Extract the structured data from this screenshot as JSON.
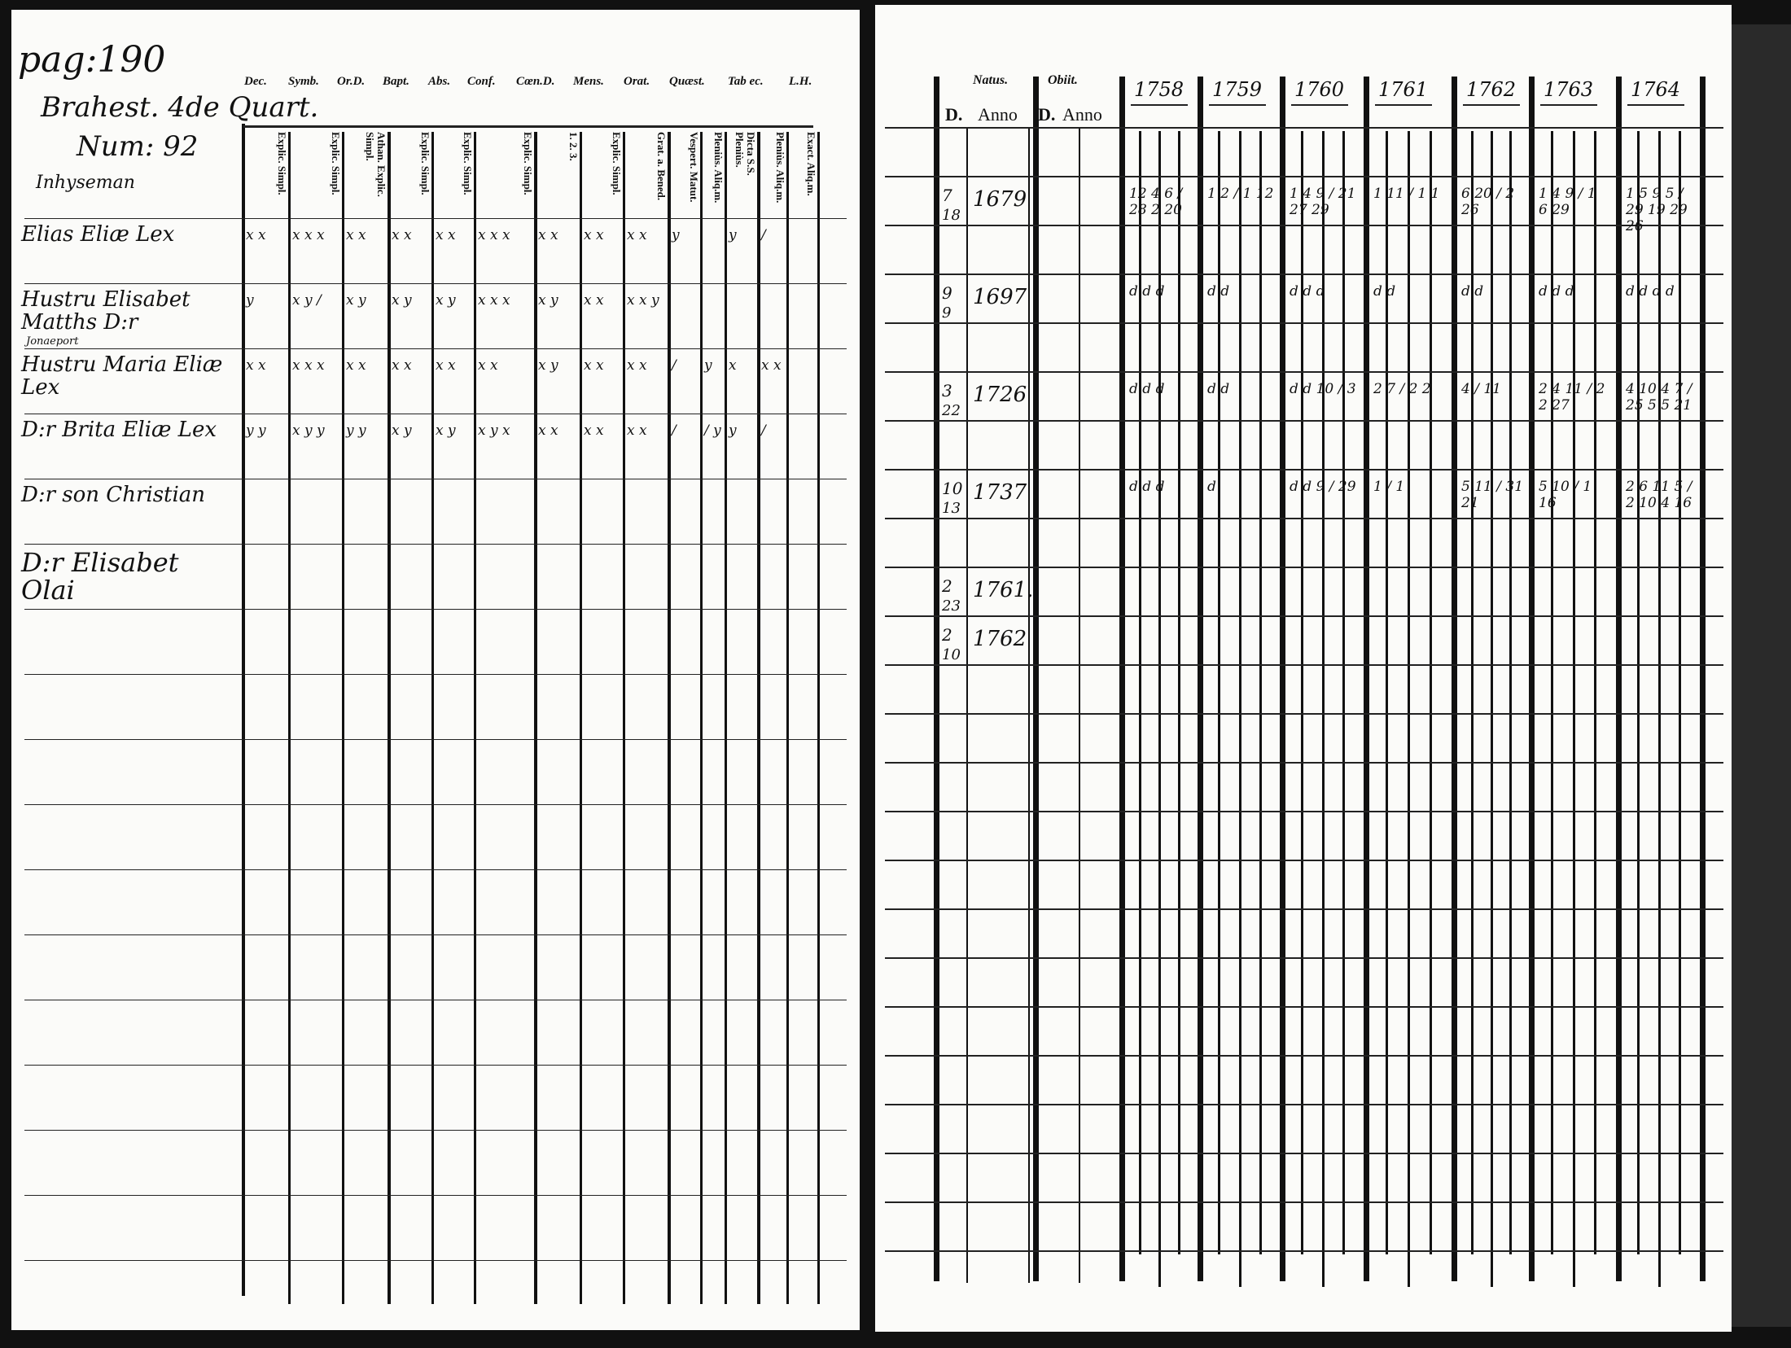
{
  "left_page": {
    "page_label": "pag:190",
    "place": "Brahest. 4de Quart.",
    "number": "Num: 92",
    "occupation": "Inhyseman",
    "top_headers": [
      "Dec.",
      "Symb.",
      "Or.D.",
      "Bapt.",
      "Abs.",
      "Conf.",
      "Cœn.D.",
      "Mens.",
      "Orat.",
      "Quæst.",
      "Tab ec.",
      "L.H."
    ],
    "column_headers": [
      "Explic. Simpl.",
      "Explic. Simpl.",
      "Athan. Explic. Simpl.",
      "Explic. Simpl.",
      "Explic. Simpl.",
      "Explic. Simpl.",
      "1. 2. 3.",
      "Explic. Simpl.",
      "Grat. a. Bened.",
      "Vespert. Matut.",
      "Pleniùs. Aliq.m.",
      "Dicta S.S. Pleniùs.",
      "Pleniùs. Aliq.m.",
      "Exact. Aliq.m."
    ],
    "persons": [
      {
        "name": "Elias Eliæ Lex",
        "marks": [
          "x x",
          "x x x",
          "x x",
          "x x",
          "x x",
          "x x x",
          "x x",
          "x x",
          "x x",
          "y",
          "",
          "y",
          "/"
        ]
      },
      {
        "name": "Hustru Elisabet Matths D:r",
        "note": "Jonaeport",
        "marks": [
          "y",
          "x y /",
          "x y",
          "x y",
          "x y",
          "x x x",
          "x y",
          "x x",
          "x x y",
          "",
          "",
          "",
          ""
        ]
      },
      {
        "name": "Hustru Maria Eliæ Lex",
        "marks": [
          "x x",
          "x x x",
          "x x",
          "x x",
          "x x",
          "x x",
          "x y",
          "x x",
          "x x",
          "/",
          "y",
          "x",
          "x x"
        ]
      },
      {
        "name": "D:r Brita Eliæ Lex",
        "marks": [
          "y y",
          "x y y",
          "y y",
          "x y",
          "x y",
          "x y x",
          "x x",
          "x x",
          "x x",
          "/",
          "/ y",
          "y",
          "/"
        ]
      },
      {
        "name": "D:r son Christian",
        "marks": []
      },
      {
        "name": "D:r Elisabet Olai",
        "marks": []
      }
    ]
  },
  "right_page": {
    "natus_label": "Natus.",
    "obiit_label": "Obiit.",
    "d_label": "D.",
    "anno_label": "Anno",
    "years": [
      "1758",
      "1759",
      "1760",
      "1761",
      "1762",
      "1763",
      "1764"
    ],
    "births": [
      {
        "day": "7",
        "month": "18",
        "year": "1679"
      },
      {
        "day": "9",
        "month": "9",
        "year": "1697"
      },
      {
        "day": "3",
        "month": "22",
        "year": "1726"
      },
      {
        "day": "10",
        "month": "13",
        "year": "1737"
      },
      {
        "day": "2",
        "month": "23",
        "year": "1761."
      },
      {
        "day": "2",
        "month": "10",
        "year": "1762"
      }
    ],
    "entries": [
      [
        "12 4 6 / 28 2 20",
        "1 2 / 1 12",
        "1 4 9 / 21 27 29",
        "1 11 / 1 1",
        "6 20 / 2 26",
        "1 4 9 / 1 6 29",
        "1 5 9 5 / 29 19 29 26"
      ],
      [
        "d d d",
        "d d",
        "d d d",
        "d d",
        "d d",
        "d d d",
        "d d d d"
      ],
      [
        "d d d",
        "d d",
        "d d 10 / 3",
        "2 7 / 2 2",
        "4 / 11",
        "2 4 11 / 2 2 27",
        "4 10 4 7 / 25 5 5 21"
      ],
      [
        "d d d",
        "d",
        "d d 9 / 29",
        "1 / 1",
        "5 11 / 31 21",
        "5 10 / 1 16",
        "2 6 11 5 / 2 10 4 16"
      ]
    ]
  },
  "colors": {
    "paper": "#fbfbf9",
    "ink": "#111111",
    "background": "#111111"
  }
}
